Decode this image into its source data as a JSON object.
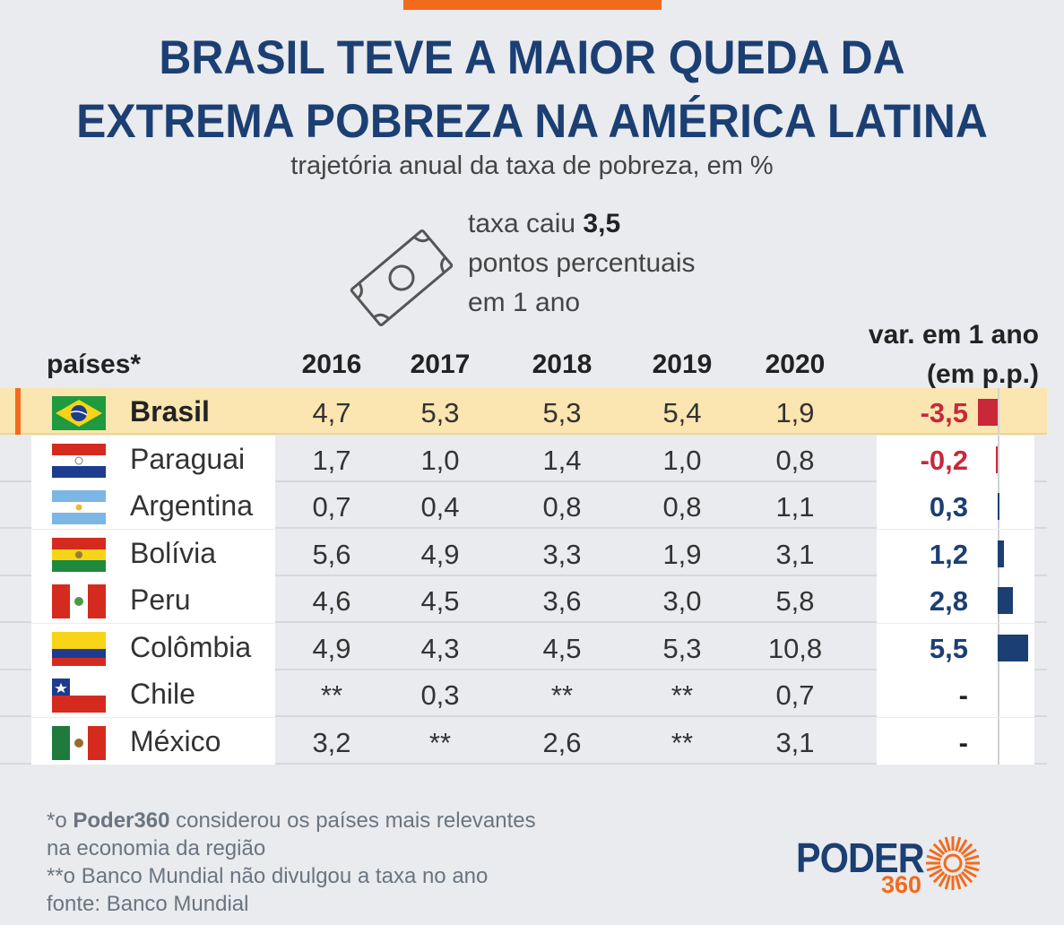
{
  "title": {
    "line1": "BRASIL TEVE A MAIOR QUEDA DA",
    "line2": "EXTREMA POBREZA NA AMÉRICA LATINA"
  },
  "subtitle": "trajetória anual da taxa de pobreza, em %",
  "callout": {
    "prefix": "taxa caiu",
    "value": "3,5",
    "line2": "pontos percentuais",
    "line3": "em 1 ano",
    "icon": "money-bill-icon"
  },
  "headers": {
    "country": "países*",
    "years": [
      "2016",
      "2017",
      "2018",
      "2019",
      "2020"
    ],
    "var_line1": "var. em 1 ano",
    "var_line2": "(em p.p.)"
  },
  "chart_data": {
    "type": "table",
    "title": "BRASIL TEVE A MAIOR QUEDA DA EXTREMA POBREZA NA AMÉRICA LATINA",
    "subtitle": "trajetória anual da taxa de pobreza, em %",
    "columns": [
      "países*",
      "2016",
      "2017",
      "2018",
      "2019",
      "2020",
      "var. em 1 ano (em p.p.)"
    ],
    "rows": [
      {
        "country": "Brasil",
        "flag": "brazil-flag",
        "highlight": true,
        "values": [
          "4,7",
          "5,3",
          "5,3",
          "5,4",
          "1,9"
        ],
        "var": "-3,5",
        "var_num": -3.5
      },
      {
        "country": "Paraguai",
        "flag": "paraguay-flag",
        "highlight": false,
        "values": [
          "1,7",
          "1,0",
          "1,4",
          "1,0",
          "0,8"
        ],
        "var": "-0,2",
        "var_num": -0.2
      },
      {
        "country": "Argentina",
        "flag": "argentina-flag",
        "highlight": false,
        "values": [
          "0,7",
          "0,4",
          "0,8",
          "0,8",
          "1,1"
        ],
        "var": "0,3",
        "var_num": 0.3
      },
      {
        "country": "Bolívia",
        "flag": "bolivia-flag",
        "highlight": false,
        "values": [
          "5,6",
          "4,9",
          "3,3",
          "1,9",
          "3,1"
        ],
        "var": "1,2",
        "var_num": 1.2
      },
      {
        "country": "Peru",
        "flag": "peru-flag",
        "highlight": false,
        "values": [
          "4,6",
          "4,5",
          "3,6",
          "3,0",
          "5,8"
        ],
        "var": "2,8",
        "var_num": 2.8
      },
      {
        "country": "Colômbia",
        "flag": "colombia-flag",
        "highlight": false,
        "values": [
          "4,9",
          "4,3",
          "4,5",
          "5,3",
          "10,8"
        ],
        "var": "5,5",
        "var_num": 5.5
      },
      {
        "country": "Chile",
        "flag": "chile-flag",
        "highlight": false,
        "values": [
          "**",
          "0,3",
          "**",
          "**",
          "0,7"
        ],
        "var": "-",
        "var_num": null
      },
      {
        "country": "México",
        "flag": "mexico-flag",
        "highlight": false,
        "values": [
          "3,2",
          "**",
          "2,6",
          "**",
          "3,1"
        ],
        "var": "-",
        "var_num": null
      }
    ]
  },
  "colors": {
    "title": "#1c3f73",
    "accent": "#f26b1d",
    "negative": "#c8283a",
    "positive": "#1c3f73",
    "highlight": "#fbe5b0"
  },
  "notes": {
    "line1_prefix": "*o",
    "line1_brand": "Poder360",
    "line1_suffix": "considerou os países mais relevantes",
    "line2": "na economia da região",
    "line3": "**o Banco Mundial não divulgou a taxa no ano",
    "line4": "fonte: Banco Mundial"
  },
  "logo": {
    "text": "PODER",
    "number": "360"
  }
}
